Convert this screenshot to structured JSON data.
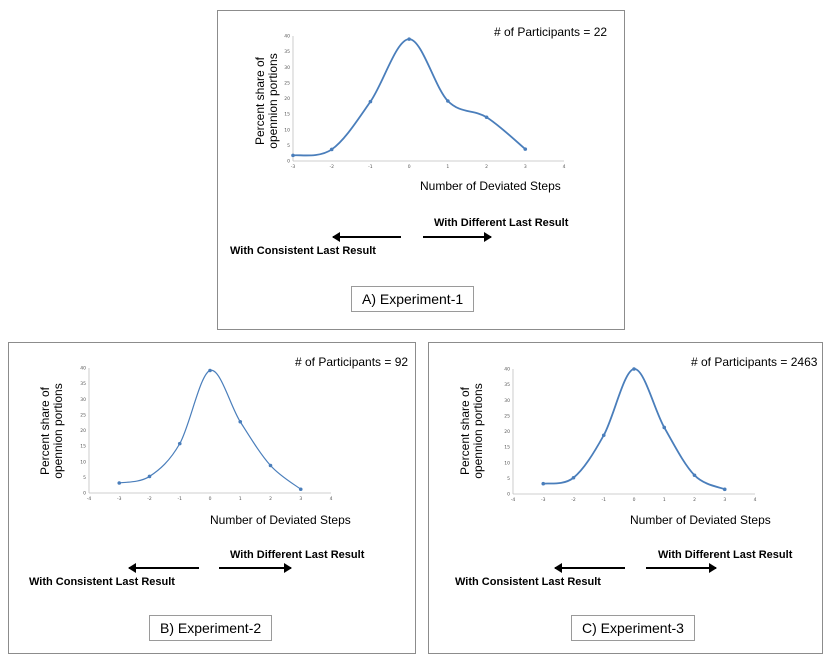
{
  "chart_data": [
    {
      "type": "line",
      "x": [
        -3,
        -2,
        -1,
        0,
        1,
        2,
        3
      ],
      "y": [
        1.8,
        3.7,
        19.0,
        39.0,
        19.2,
        14.0,
        3.8
      ],
      "xlim": [
        -3,
        4
      ],
      "ylim": [
        0,
        40
      ],
      "xticks": [
        "-3",
        "-2",
        "-1",
        "0",
        "1",
        "2",
        "3",
        "4"
      ],
      "yticks": [
        "0",
        "5",
        "10",
        "15",
        "20",
        "25",
        "30",
        "35",
        "40"
      ],
      "xlabel": "Number of Deviated Steps",
      "ylabel": [
        "Percent share of",
        "opennion portions"
      ],
      "participants": "# of Participants = 22",
      "left_label": "With Consistent Last Result",
      "right_label": "With Different Last Result",
      "caption": "A) Experiment-1",
      "color": "#4a7ebb"
    },
    {
      "type": "line",
      "x": [
        -3,
        -2,
        -1,
        0,
        1,
        2,
        3
      ],
      "y": [
        3.2,
        5.3,
        15.8,
        39.2,
        22.8,
        8.8,
        1.2
      ],
      "xlim": [
        -4,
        4
      ],
      "ylim": [
        0,
        40
      ],
      "xticks": [
        "-4",
        "-3",
        "-2",
        "-1",
        "0",
        "1",
        "2",
        "3",
        "4"
      ],
      "yticks": [
        "0",
        "5",
        "10",
        "15",
        "20",
        "25",
        "30",
        "35",
        "40"
      ],
      "xlabel": "Number of Deviated Steps",
      "ylabel": [
        "Percent share of",
        "opennion portions"
      ],
      "participants": "# of Participants = 92",
      "left_label": "With Consistent Last Result",
      "right_label": "With Different Last Result",
      "caption": "B) Experiment-2",
      "color": "#4a7ebb"
    },
    {
      "type": "line",
      "x": [
        -3,
        -2,
        -1,
        0,
        1,
        2,
        3
      ],
      "y": [
        3.3,
        5.2,
        18.8,
        40.0,
        21.3,
        6.0,
        1.5
      ],
      "xlim": [
        -4,
        4
      ],
      "ylim": [
        0,
        40
      ],
      "xticks": [
        "-4",
        "-3",
        "-2",
        "-1",
        "0",
        "1",
        "2",
        "3",
        "4"
      ],
      "yticks": [
        "0",
        "5",
        "10",
        "15",
        "20",
        "25",
        "30",
        "35",
        "40"
      ],
      "xlabel": "Number of Deviated Steps",
      "ylabel": [
        "Percent share of",
        "opennion portions"
      ],
      "participants": "# of Participants = 2463",
      "left_label": "With Consistent Last Result",
      "right_label": "With Different Last Result",
      "caption": "C) Experiment-3",
      "color": "#4a7ebb"
    }
  ]
}
